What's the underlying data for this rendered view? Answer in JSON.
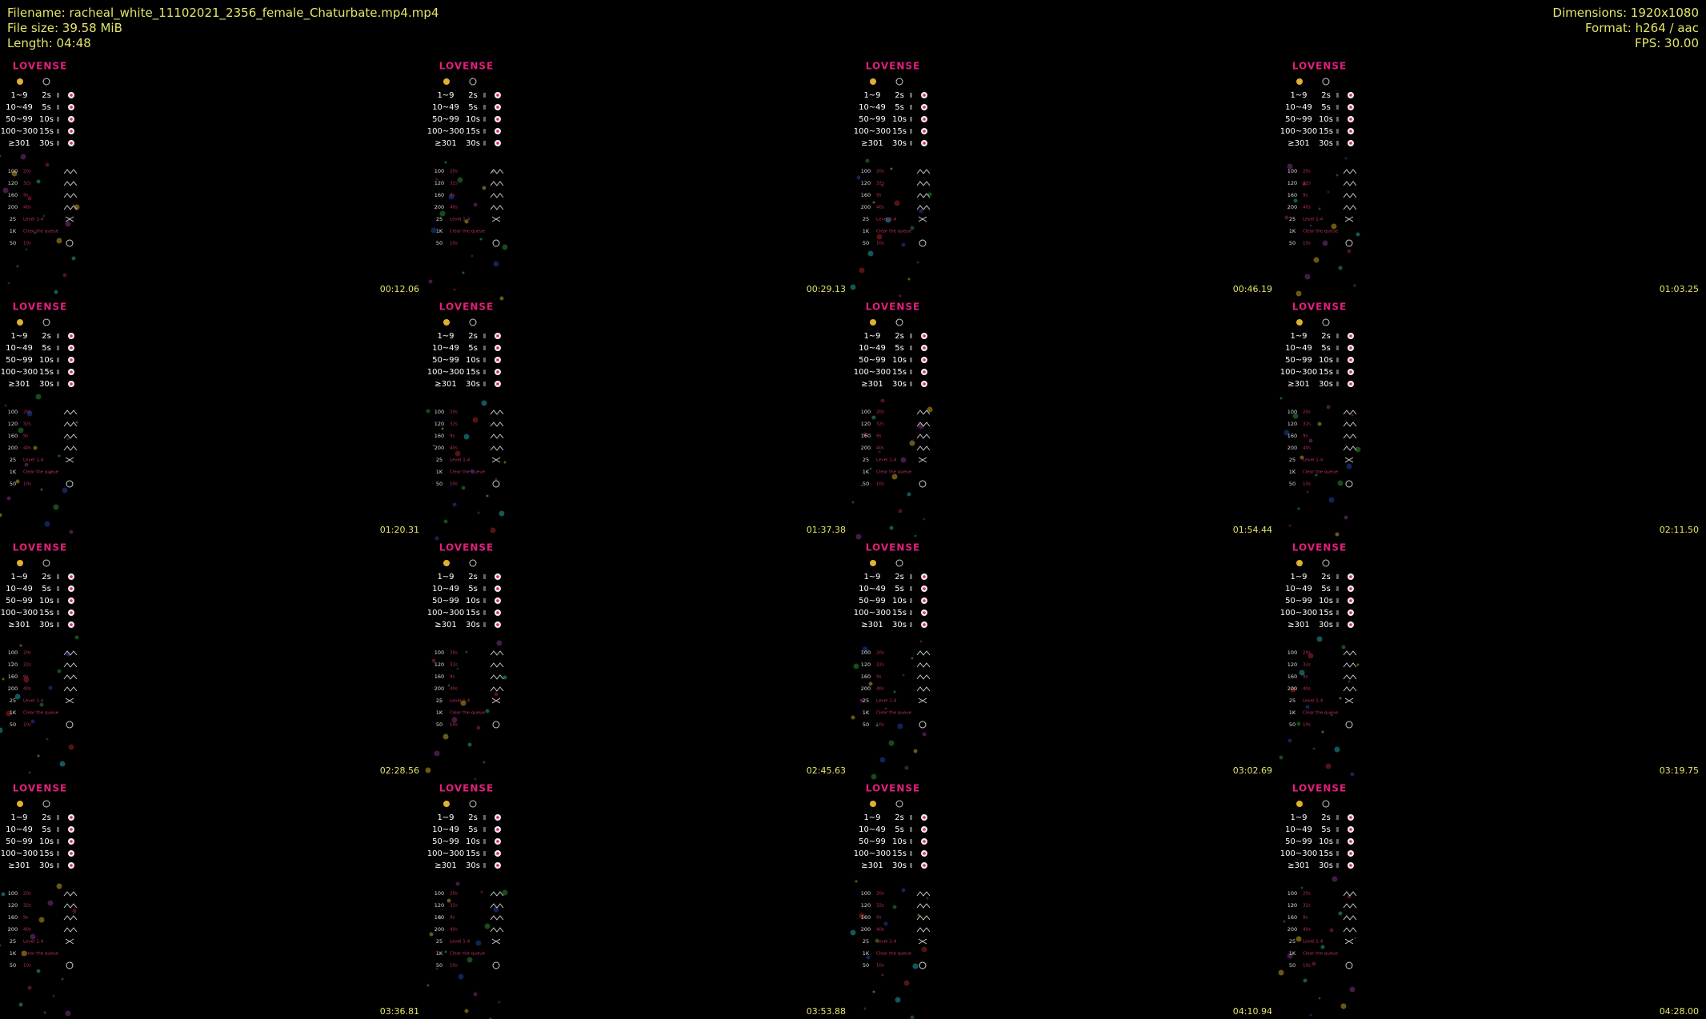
{
  "header": {
    "filename": "Filename: racheal_white_11102021_2356_female_Chaturbate.mp4.mp4",
    "file_size": "File size: 39.58 MiB",
    "length": "Length: 04:48",
    "dimensions": "Dimensions: 1920x1080",
    "format": "Format: h264 / aac",
    "fps": "FPS: 30.00"
  },
  "panel": {
    "brand": "LOVENSE",
    "tip_levels": [
      {
        "range": "1~9",
        "duration": "2s"
      },
      {
        "range": "10~49",
        "duration": "5s"
      },
      {
        "range": "50~99",
        "duration": "10s"
      },
      {
        "range": "100~300",
        "duration": "15s"
      },
      {
        "range": "≥301",
        "duration": "30s"
      }
    ],
    "specials": [
      {
        "amount": "100",
        "label": "20s"
      },
      {
        "amount": "120",
        "label": "32s"
      },
      {
        "amount": "160",
        "label": "9s"
      },
      {
        "amount": "200",
        "label": "40s"
      },
      {
        "amount": "25",
        "label": "Level 1-4"
      },
      {
        "amount": "1K",
        "label": "Clear the queue"
      },
      {
        "amount": "50",
        "label": "10s"
      }
    ]
  },
  "thumbnails": [
    {
      "timestamp": "00:12.06"
    },
    {
      "timestamp": "00:29.13"
    },
    {
      "timestamp": "00:46.19"
    },
    {
      "timestamp": "01:03.25"
    },
    {
      "timestamp": "01:20.31"
    },
    {
      "timestamp": "01:37.38"
    },
    {
      "timestamp": "01:54.44"
    },
    {
      "timestamp": "02:11.50"
    },
    {
      "timestamp": "02:28.56"
    },
    {
      "timestamp": "02:45.63"
    },
    {
      "timestamp": "03:02.69"
    },
    {
      "timestamp": "03:19.75"
    },
    {
      "timestamp": "03:36.81"
    },
    {
      "timestamp": "03:53.88"
    },
    {
      "timestamp": "04:10.94"
    },
    {
      "timestamp": "04:28.00"
    }
  ]
}
